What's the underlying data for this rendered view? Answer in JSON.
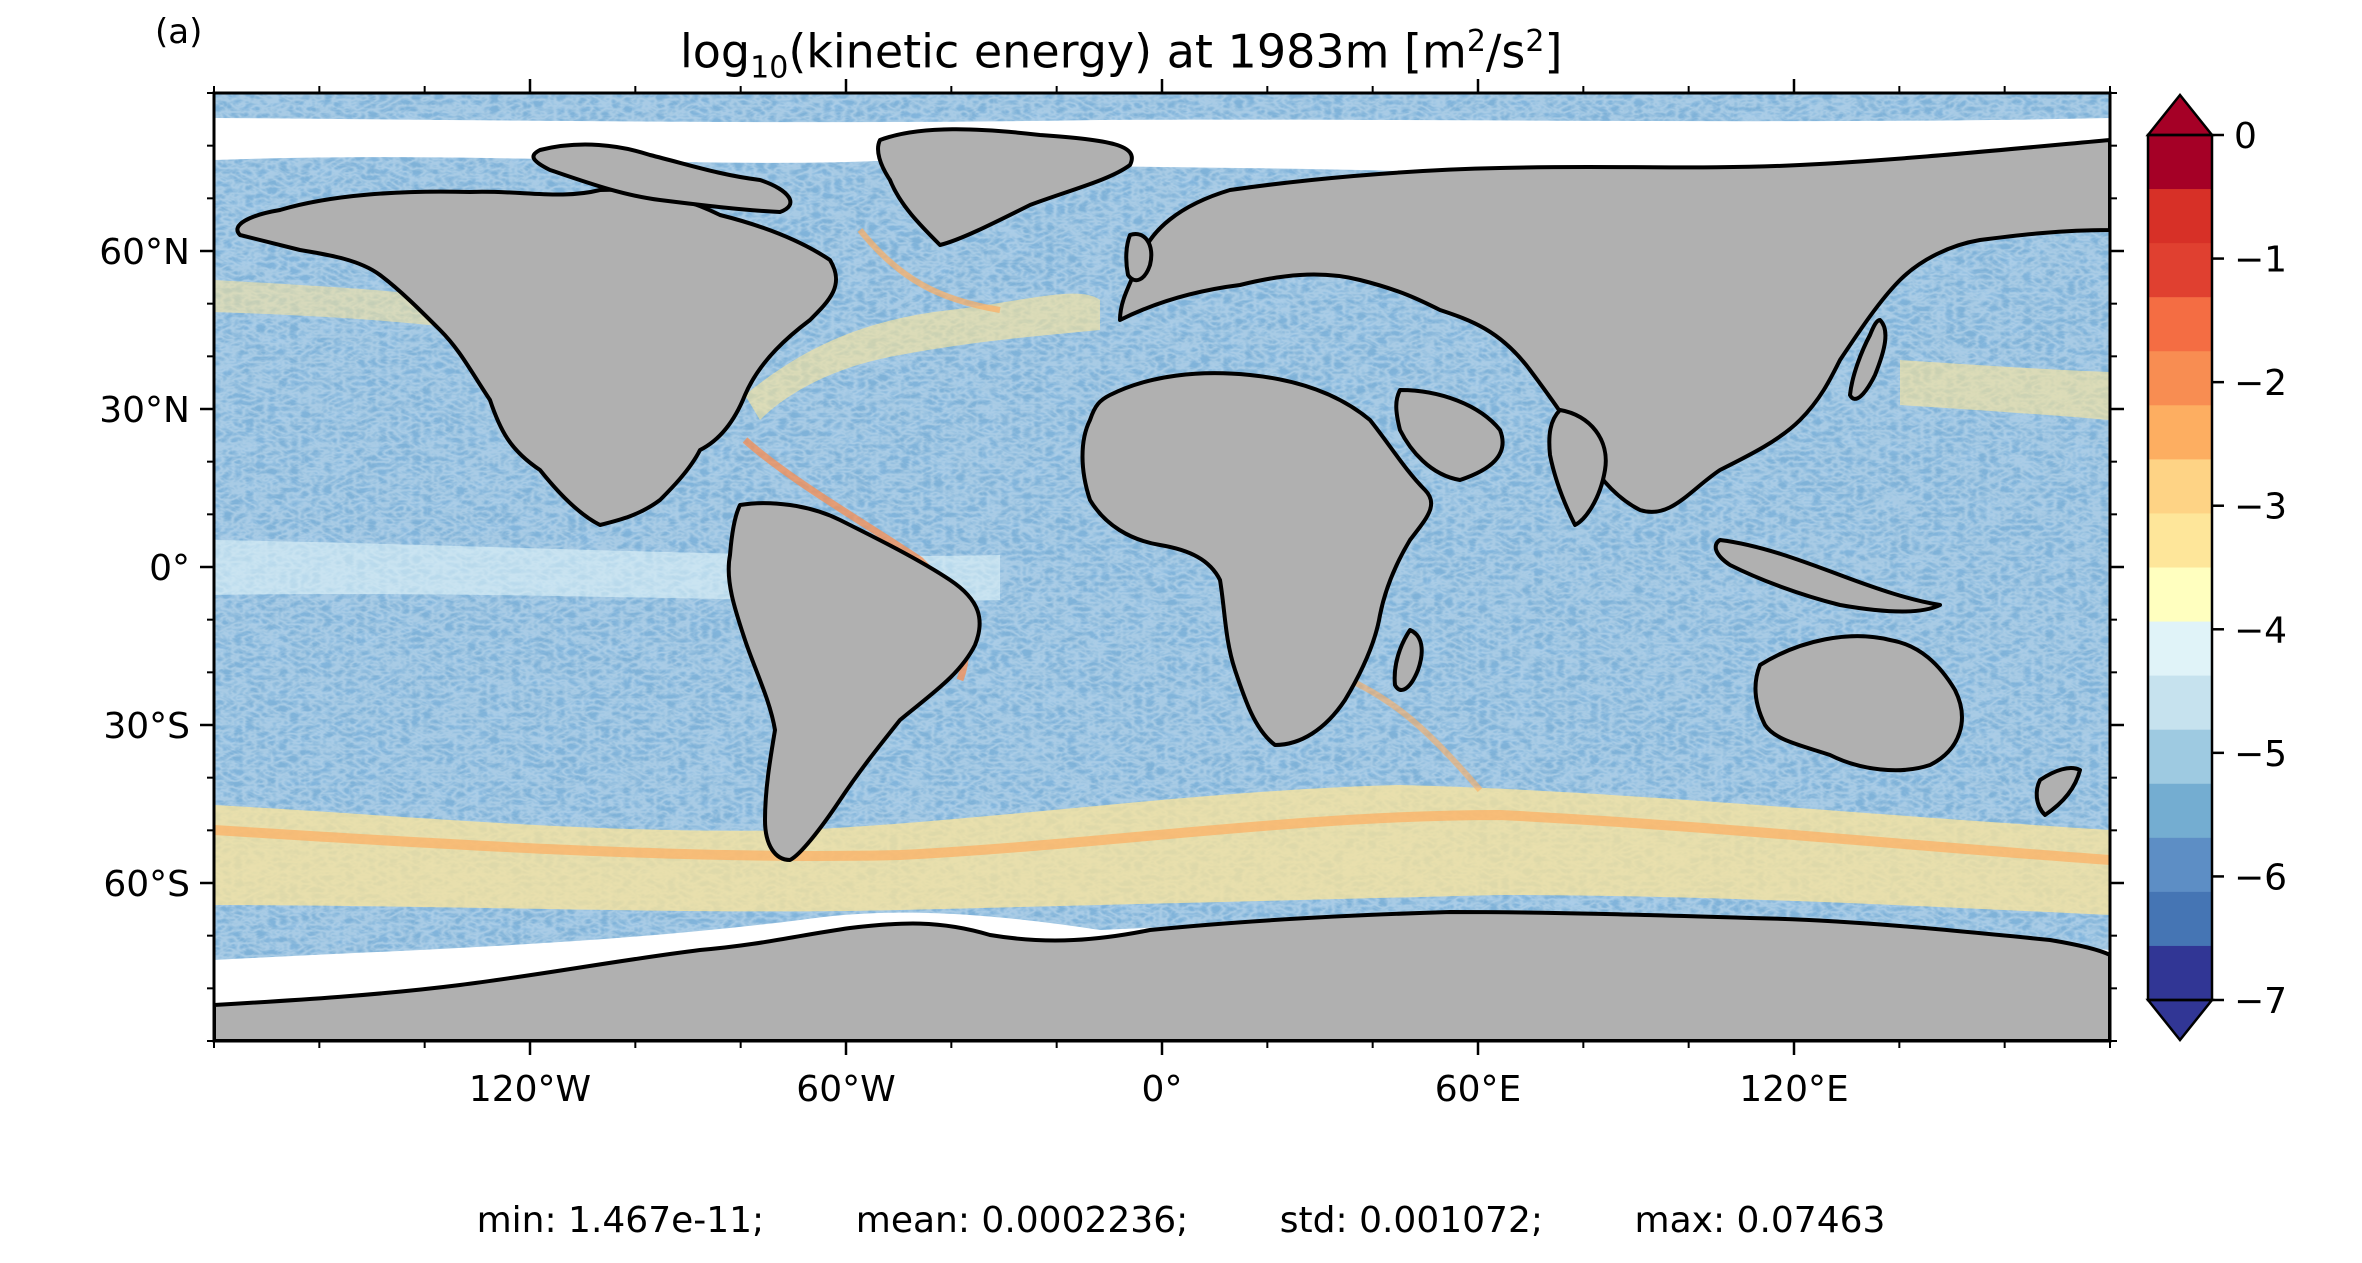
{
  "panel_label": "(a)",
  "title": {
    "prefix": "log",
    "sub": "10",
    "middle": "(kinetic energy) at 1983m [m",
    "sup1": "2",
    "mid2": "/s",
    "sup2": "2",
    "suffix": "]"
  },
  "stats": {
    "min": "min: 1.467e-11;",
    "mean": "mean: 0.0002236;",
    "std": "std: 0.001072;",
    "max": "max: 0.07463"
  },
  "chart_data": {
    "type": "heatmap",
    "projection": "plate carree (global)",
    "variable": "log10(kinetic energy)",
    "xticks": [
      "120°W",
      "60°W",
      "0°",
      "60°E",
      "120°E"
    ],
    "xtick_values": [
      -120,
      -60,
      0,
      60,
      120
    ],
    "yticks": [
      "60°N",
      "30°N",
      "0°",
      "30°S",
      "60°S"
    ],
    "ytick_values": [
      60,
      30,
      0,
      -30,
      -60
    ],
    "xlim": [
      -180,
      180
    ],
    "ylim": [
      -90,
      90
    ],
    "colorbar": {
      "ticks": [
        "0",
        "−1",
        "−2",
        "−3",
        "−4",
        "−5",
        "−6",
        "−7"
      ],
      "tick_values": [
        0,
        -1,
        -2,
        -3,
        -4,
        -5,
        -6,
        -7
      ],
      "range": [
        -7,
        0
      ],
      "extend": "both",
      "colors": [
        "#313695",
        "#4575b4",
        "#5d8ec5",
        "#74add1",
        "#9ecae1",
        "#c6e2ee",
        "#e0f3f8",
        "#ffffbf",
        "#fee69a",
        "#fed385",
        "#fdae61",
        "#f88d52",
        "#f46d43",
        "#e04030",
        "#d73027",
        "#a50026"
      ]
    },
    "land_color": "#b0b0b0",
    "ocean_base_color": "#7fb2d8"
  }
}
